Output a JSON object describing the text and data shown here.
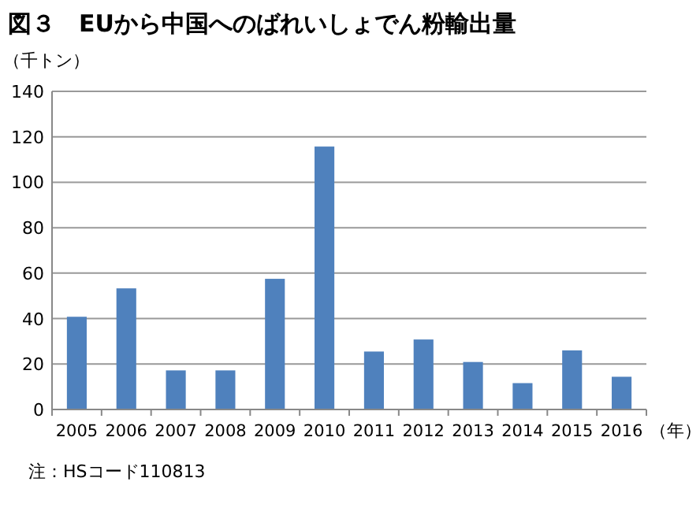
{
  "chart_data": {
    "type": "bar",
    "title": "図３　EUから中国へのばれいしょでん粉輸出量",
    "ylabel": "（千トン）",
    "xlabel": "（年）",
    "categories": [
      "2005",
      "2006",
      "2007",
      "2008",
      "2009",
      "2010",
      "2011",
      "2012",
      "2013",
      "2014",
      "2015",
      "2016"
    ],
    "values": [
      40.8,
      53.3,
      17.2,
      17.2,
      57.5,
      115.7,
      25.5,
      30.8,
      20.9,
      11.6,
      26,
      14.4
    ],
    "color": "#4f81bd",
    "ylim": [
      0,
      140
    ],
    "yticks": [
      0,
      20,
      40,
      60,
      80,
      100,
      120,
      140
    ],
    "grid": "y",
    "annotations": [
      "注：HSコード110813"
    ]
  }
}
